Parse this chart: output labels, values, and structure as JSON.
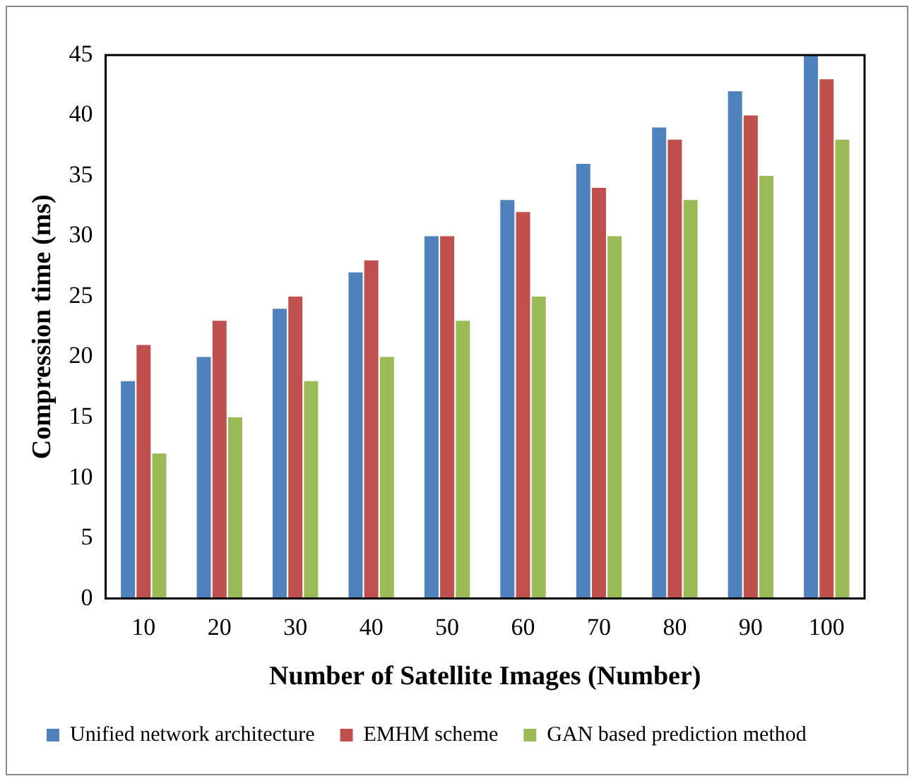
{
  "chart_data": {
    "type": "bar",
    "xlabel": "Number of Satellite Images (Number)",
    "ylabel": "Compression time (ms)",
    "categories": [
      "10",
      "20",
      "30",
      "40",
      "50",
      "60",
      "70",
      "80",
      "90",
      "100"
    ],
    "series": [
      {
        "name": "Unified network architecture",
        "color": "#4f81bd",
        "values": [
          18,
          20,
          24,
          27,
          30,
          33,
          36,
          39,
          42,
          45
        ]
      },
      {
        "name": "EMHM scheme",
        "color": "#c0504d",
        "values": [
          21,
          23,
          25,
          28,
          30,
          32,
          34,
          38,
          40,
          43
        ]
      },
      {
        "name": "GAN based prediction method",
        "color": "#9bbb59",
        "values": [
          12,
          15,
          18,
          20,
          23,
          25,
          30,
          33,
          35,
          38
        ]
      }
    ],
    "ylim": [
      0,
      45
    ],
    "yticks": [
      0,
      5,
      10,
      15,
      20,
      25,
      30,
      35,
      40,
      45
    ],
    "grid": false,
    "legend": "bottom"
  }
}
